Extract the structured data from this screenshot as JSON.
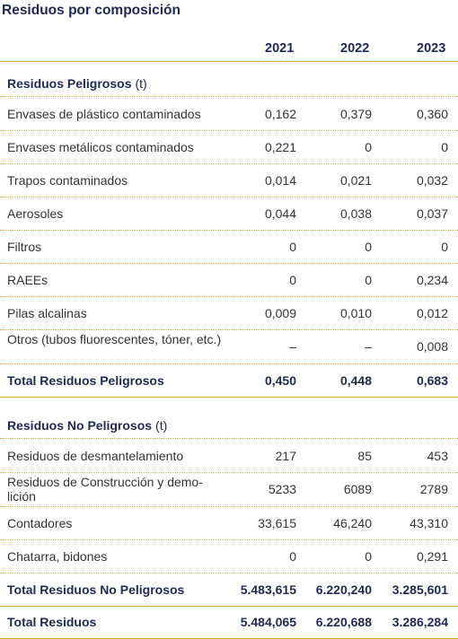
{
  "title": "Residuos por composición",
  "years": [
    "2021",
    "2022",
    "2023"
  ],
  "peligrosos": {
    "heading": "Residuos Peligrosos",
    "unit": "(t)",
    "rows": [
      {
        "name": "Envases de plástico contaminados",
        "v": [
          "0,162",
          "0,379",
          "0,360"
        ]
      },
      {
        "name": "Envases metálicos contaminados",
        "v": [
          "0,221",
          "0",
          "0"
        ]
      },
      {
        "name": "Trapos contaminados",
        "v": [
          "0,014",
          "0,021",
          "0,032"
        ]
      },
      {
        "name": "Aerosoles",
        "v": [
          "0,044",
          "0,038",
          "0,037"
        ]
      },
      {
        "name": "Filtros",
        "v": [
          "0",
          "0",
          "0"
        ]
      },
      {
        "name": "RAEEs",
        "v": [
          "0",
          "0",
          "0,234"
        ]
      },
      {
        "name": "Pilas alcalinas",
        "v": [
          "0,009",
          "0,010",
          "0,012"
        ]
      },
      {
        "name": "Otros (tubos fluorescentes, tóner, etc.)",
        "v": [
          "–",
          "–",
          "0,008"
        ]
      }
    ],
    "total": {
      "name": "Total Residuos Peligrosos",
      "v": [
        "0,450",
        "0,448",
        "0,683"
      ]
    }
  },
  "no_peligrosos": {
    "heading": "Residuos No Peligrosos",
    "unit": "(t)",
    "rows": [
      {
        "name": "Residuos de desmantelamiento",
        "v": [
          "217",
          "85",
          "453"
        ]
      },
      {
        "name": "Residuos de Construcción y demo-lición",
        "v": [
          "5233",
          "6089",
          "2789"
        ]
      },
      {
        "name": "Contadores",
        "v": [
          "33,615",
          "46,240",
          "43,310"
        ]
      },
      {
        "name": "Chatarra, bidones",
        "v": [
          "0",
          "0",
          "0,291"
        ]
      }
    ],
    "total": {
      "name": "Total Residuos No Peligrosos",
      "v": [
        "5.483,615",
        "6.220,240",
        "3.285,601"
      ]
    }
  },
  "grand_total": {
    "name": "Total Residuos",
    "v": [
      "5.484,065",
      "6.220,688",
      "3.286,284"
    ]
  }
}
